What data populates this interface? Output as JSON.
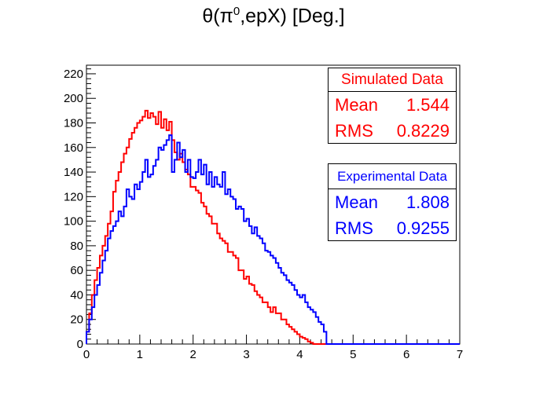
{
  "title": {
    "prefix": "θ(π",
    "sup": "0",
    "suffix": ",epX) [Deg.]"
  },
  "colors": {
    "simulated": "#ff0000",
    "experimental": "#0000ff",
    "axis": "#000000"
  },
  "stats": {
    "simulated": {
      "header": "Simulated Data",
      "mean_label": "Mean",
      "mean": "1.544",
      "rms_label": "RMS",
      "rms": "0.8229"
    },
    "experimental": {
      "header": "Experimental Data",
      "mean_label": "Mean",
      "mean": "1.808",
      "rms_label": "RMS",
      "rms": "0.9255"
    }
  },
  "chart_data": {
    "type": "histogram",
    "title": "θ(π0,epX) [Deg.]",
    "xlabel": "",
    "ylabel": "",
    "xlim": [
      0,
      7
    ],
    "ylim": [
      0,
      227
    ],
    "x_ticks": [
      0,
      1,
      2,
      3,
      4,
      5,
      6,
      7
    ],
    "y_ticks": [
      0,
      20,
      40,
      60,
      80,
      100,
      120,
      140,
      160,
      180,
      200,
      220
    ],
    "bin_width": 0.05,
    "grid": false,
    "series": [
      {
        "name": "Simulated Data",
        "color": "#ff0000",
        "values": [
          10,
          25,
          40,
          52,
          62,
          72,
          80,
          88,
          98,
          108,
          124,
          133,
          140,
          148,
          155,
          160,
          167,
          172,
          176,
          180,
          182,
          185,
          190,
          184,
          188,
          185,
          179,
          189,
          176,
          183,
          174,
          181,
          166,
          156,
          150,
          155,
          148,
          142,
          138,
          128,
          128,
          125,
          123,
          115,
          112,
          106,
          104,
          98,
          98,
          90,
          86,
          84,
          82,
          75,
          75,
          72,
          70,
          60,
          60,
          53,
          55,
          49,
          48,
          43,
          40,
          38,
          34,
          34,
          30,
          26,
          30,
          25,
          25,
          20,
          20,
          16,
          14,
          12,
          10,
          8,
          6,
          5,
          4,
          2,
          1,
          0,
          0,
          0,
          0,
          0,
          0,
          0,
          0,
          0,
          0,
          0,
          0,
          0,
          0,
          0,
          0,
          0,
          0,
          0,
          0,
          0,
          0,
          0,
          0,
          0,
          0,
          0,
          0,
          0,
          0,
          0,
          0,
          0,
          0,
          0,
          0,
          0,
          0,
          0,
          0,
          0,
          0,
          0,
          0,
          0,
          0,
          0,
          0,
          0,
          0,
          0,
          0,
          0,
          0,
          0
        ]
      },
      {
        "name": "Experimental Data",
        "color": "#0000ff",
        "values": [
          10,
          20,
          30,
          40,
          48,
          58,
          68,
          76,
          86,
          92,
          96,
          100,
          108,
          104,
          112,
          126,
          120,
          118,
          130,
          126,
          132,
          140,
          150,
          136,
          138,
          145,
          150,
          160,
          158,
          162,
          166,
          170,
          140,
          150,
          164,
          152,
          158,
          140,
          150,
          136,
          135,
          140,
          150,
          138,
          146,
          130,
          140,
          128,
          136,
          130,
          128,
          140,
          122,
          126,
          120,
          118,
          110,
          112,
          110,
          100,
          102,
          96,
          90,
          95,
          88,
          86,
          82,
          76,
          75,
          72,
          70,
          66,
          62,
          58,
          56,
          52,
          50,
          48,
          44,
          40,
          38,
          40,
          34,
          30,
          28,
          26,
          22,
          18,
          16,
          10,
          0,
          0,
          0,
          0,
          0,
          0,
          0,
          0,
          0,
          0,
          0,
          0,
          0,
          0,
          0,
          0,
          0,
          0,
          0,
          0,
          0,
          0,
          0,
          0,
          0,
          0,
          0,
          0,
          0,
          0,
          0,
          0,
          0,
          0,
          0,
          0,
          0,
          0,
          0,
          0,
          0,
          0,
          0,
          0,
          0,
          0,
          0,
          0,
          0,
          0
        ]
      }
    ]
  }
}
